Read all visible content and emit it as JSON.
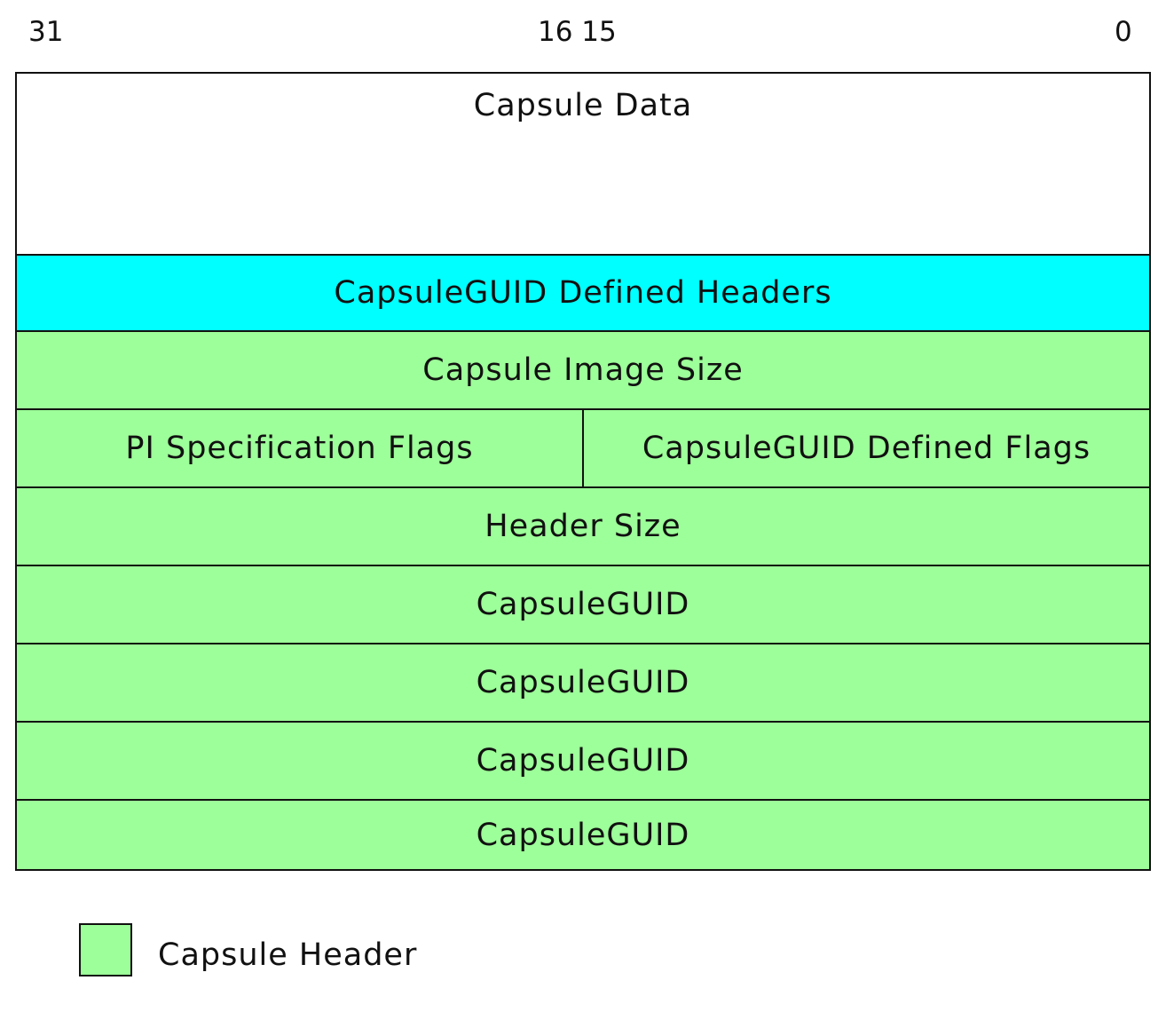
{
  "bit_labels": {
    "left": "31",
    "middle": "16 15",
    "right": "0"
  },
  "colors": {
    "capsule_data": "#ffffff",
    "guid_defined_headers": "#00ffff",
    "capsule_header": "#9dff99",
    "border": "#111111"
  },
  "rows": {
    "capsule_data": "Capsule Data",
    "guid_defined_headers": "CapsuleGUID Defined Headers",
    "image_size": "Capsule Image Size",
    "pi_spec_flags": "PI Specification Flags",
    "guid_defined_flags": "CapsuleGUID Defined Flags",
    "header_size": "Header Size",
    "capsule_guid": [
      "CapsuleGUID",
      "CapsuleGUID",
      "CapsuleGUID",
      "CapsuleGUID"
    ]
  },
  "legend": {
    "label": "Capsule Header"
  }
}
